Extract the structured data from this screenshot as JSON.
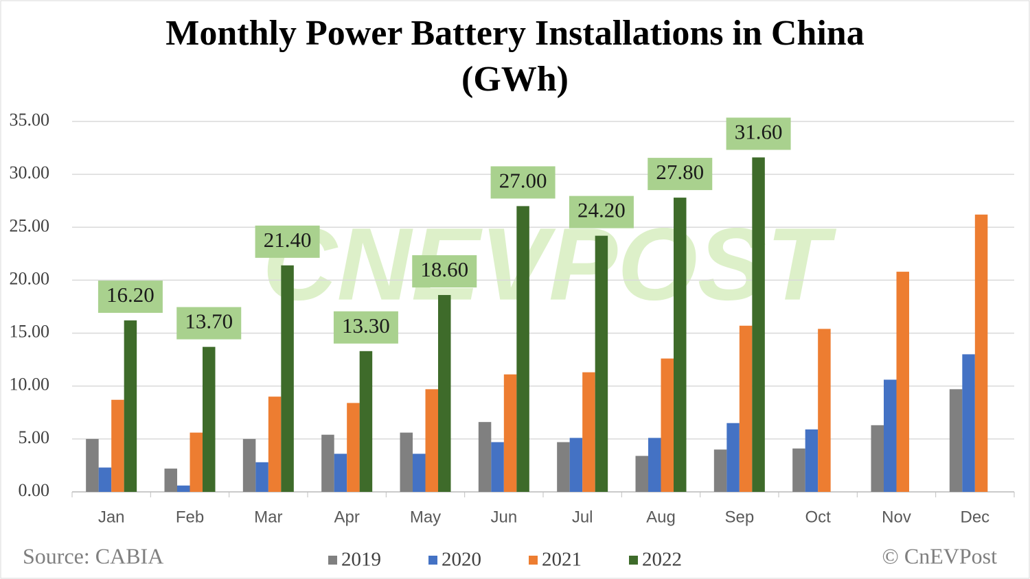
{
  "chart_data": {
    "type": "bar",
    "title": "Monthly Power Battery Installations in China",
    "subtitle": "(GWh)",
    "categories": [
      "Jan",
      "Feb",
      "Mar",
      "Apr",
      "May",
      "Jun",
      "Jul",
      "Aug",
      "Sep",
      "Oct",
      "Nov",
      "Dec"
    ],
    "series": [
      {
        "name": "2019",
        "color": "#808080",
        "values": [
          5.0,
          2.2,
          5.0,
          5.4,
          5.6,
          6.6,
          4.7,
          3.4,
          4.0,
          4.1,
          6.3,
          9.7
        ]
      },
      {
        "name": "2020",
        "color": "#4472c4",
        "values": [
          2.3,
          0.6,
          2.8,
          3.6,
          3.6,
          4.7,
          5.1,
          5.1,
          6.5,
          5.9,
          10.6,
          13.0
        ]
      },
      {
        "name": "2021",
        "color": "#ed7d31",
        "values": [
          8.7,
          5.6,
          9.0,
          8.4,
          9.7,
          11.1,
          11.3,
          12.6,
          15.7,
          15.4,
          20.8,
          26.2
        ]
      },
      {
        "name": "2022",
        "color": "#3e6b2a",
        "values": [
          16.2,
          13.7,
          21.4,
          13.3,
          18.6,
          27.0,
          24.2,
          27.8,
          31.6,
          null,
          null,
          null
        ],
        "value_labels": [
          "16.20",
          "13.70",
          "21.40",
          "13.30",
          "18.60",
          "27.00",
          "24.20",
          "27.80",
          "31.60",
          null,
          null,
          null
        ]
      }
    ],
    "ylim": [
      0,
      35
    ],
    "yticks": [
      {
        "value": 0,
        "label": "0.00"
      },
      {
        "value": 5,
        "label": "5.00"
      },
      {
        "value": 10,
        "label": "10.00"
      },
      {
        "value": 15,
        "label": "15.00"
      },
      {
        "value": 20,
        "label": "20.00"
      },
      {
        "value": 25,
        "label": "25.00"
      },
      {
        "value": 30,
        "label": "30.00"
      },
      {
        "value": 35,
        "label": "35.00"
      }
    ],
    "grid": true,
    "legend": "bottom",
    "source": "Source: CABIA",
    "credit": "© CnEVPost",
    "watermark": "CNEVPOST"
  }
}
